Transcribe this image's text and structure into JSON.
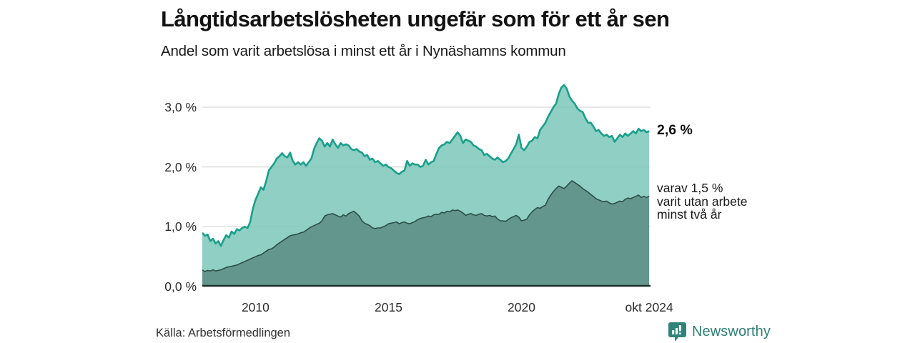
{
  "chart_data": {
    "type": "area",
    "title": "Långtidsarbetslösheten ungefär som för ett år sen",
    "subtitle": "Andel som varit arbetslösa i minst ett år i Nynäshamns kommun",
    "x_range": [
      2008.0,
      2024.85
    ],
    "y_range": [
      0,
      3.49
    ],
    "grid": "horizontal",
    "legend_position": "none",
    "x_ticks": [
      {
        "label": "2010",
        "year": 2010
      },
      {
        "label": "2015",
        "year": 2015
      },
      {
        "label": "2020",
        "year": 2020
      },
      {
        "label": "okt 2024",
        "year": 2024.8
      }
    ],
    "y_ticks": [
      {
        "label": "0,0 %",
        "value": 0
      },
      {
        "label": "1,0 %",
        "value": 1
      },
      {
        "label": "2,0 %",
        "value": 2
      },
      {
        "label": "3,0 %",
        "value": 3
      }
    ],
    "annotations": {
      "total_label": "2,6 %",
      "secondary_label": "varav 1,5 %\nvarit utan arbete\nminst två år"
    },
    "colors": {
      "total_line": "#18a08a",
      "total_fill": "#7cc7ba",
      "secondary_line": "#2b4f49",
      "secondary_fill": "#5c8c83",
      "gridline": "#d6d6d6",
      "axis_line": "#1d2e2a",
      "brand_teal": "#2e7f75"
    },
    "series": [
      {
        "name": "Andel arbetslösa minst ett år",
        "start": 2008.0,
        "step": 0.1,
        "values": [
          0.9,
          0.85,
          0.87,
          0.76,
          0.8,
          0.72,
          0.76,
          0.68,
          0.78,
          0.86,
          0.82,
          0.92,
          0.88,
          0.96,
          0.94,
          0.98,
          1.0,
          0.98,
          1.08,
          1.3,
          1.45,
          1.55,
          1.66,
          1.62,
          1.76,
          1.94,
          2.0,
          2.06,
          2.14,
          2.18,
          2.23,
          2.18,
          2.16,
          2.24,
          2.1,
          2.04,
          2.08,
          2.04,
          2.08,
          2.02,
          2.08,
          2.14,
          2.3,
          2.4,
          2.48,
          2.44,
          2.34,
          2.4,
          2.34,
          2.46,
          2.38,
          2.32,
          2.4,
          2.36,
          2.38,
          2.36,
          2.3,
          2.28,
          2.3,
          2.26,
          2.24,
          2.18,
          2.2,
          2.12,
          2.14,
          2.08,
          2.1,
          2.06,
          2.02,
          2.04,
          2.0,
          1.98,
          1.94,
          1.9,
          1.88,
          1.92,
          1.94,
          2.1,
          2.02,
          2.06,
          2.04,
          2.04,
          2.0,
          2.02,
          2.12,
          2.04,
          2.08,
          2.1,
          2.22,
          2.32,
          2.36,
          2.38,
          2.42,
          2.4,
          2.46,
          2.52,
          2.58,
          2.52,
          2.4,
          2.46,
          2.44,
          2.42,
          2.36,
          2.34,
          2.3,
          2.28,
          2.2,
          2.22,
          2.18,
          2.14,
          2.12,
          2.16,
          2.12,
          2.08,
          2.1,
          2.14,
          2.22,
          2.3,
          2.38,
          2.54,
          2.32,
          2.28,
          2.34,
          2.42,
          2.44,
          2.5,
          2.48,
          2.62,
          2.68,
          2.74,
          2.84,
          2.92,
          3.0,
          3.06,
          3.22,
          3.33,
          3.37,
          3.31,
          3.18,
          3.11,
          3.06,
          2.98,
          2.94,
          2.92,
          2.82,
          2.74,
          2.74,
          2.68,
          2.6,
          2.62,
          2.56,
          2.52,
          2.54,
          2.5,
          2.52,
          2.42,
          2.48,
          2.54,
          2.5,
          2.56,
          2.52,
          2.56,
          2.6,
          2.56,
          2.64,
          2.6,
          2.62,
          2.58,
          2.6
        ]
      },
      {
        "name": "Andel arbetslösa minst två år",
        "start": 2008.0,
        "step": 0.1,
        "values": [
          0.28,
          0.25,
          0.27,
          0.26,
          0.28,
          0.26,
          0.27,
          0.28,
          0.3,
          0.32,
          0.33,
          0.34,
          0.35,
          0.36,
          0.38,
          0.4,
          0.42,
          0.44,
          0.46,
          0.48,
          0.5,
          0.52,
          0.53,
          0.56,
          0.59,
          0.62,
          0.63,
          0.66,
          0.7,
          0.73,
          0.76,
          0.79,
          0.82,
          0.85,
          0.86,
          0.87,
          0.88,
          0.9,
          0.91,
          0.94,
          0.97,
          1.0,
          1.02,
          1.04,
          1.06,
          1.1,
          1.18,
          1.2,
          1.21,
          1.22,
          1.2,
          1.18,
          1.16,
          1.2,
          1.18,
          1.22,
          1.24,
          1.26,
          1.22,
          1.18,
          1.1,
          1.06,
          1.04,
          1.02,
          0.98,
          0.97,
          0.98,
          0.98,
          1.0,
          1.02,
          1.05,
          1.06,
          1.07,
          1.08,
          1.05,
          1.07,
          1.08,
          1.06,
          1.05,
          1.07,
          1.09,
          1.12,
          1.14,
          1.15,
          1.16,
          1.18,
          1.17,
          1.2,
          1.21,
          1.21,
          1.24,
          1.23,
          1.26,
          1.25,
          1.28,
          1.27,
          1.28,
          1.26,
          1.23,
          1.19,
          1.21,
          1.22,
          1.2,
          1.19,
          1.21,
          1.22,
          1.19,
          1.18,
          1.19,
          1.17,
          1.18,
          1.13,
          1.1,
          1.1,
          1.09,
          1.12,
          1.15,
          1.17,
          1.19,
          1.16,
          1.1,
          1.11,
          1.13,
          1.2,
          1.25,
          1.29,
          1.32,
          1.31,
          1.34,
          1.36,
          1.46,
          1.53,
          1.59,
          1.64,
          1.68,
          1.66,
          1.64,
          1.68,
          1.73,
          1.77,
          1.74,
          1.71,
          1.68,
          1.64,
          1.61,
          1.58,
          1.54,
          1.51,
          1.47,
          1.45,
          1.43,
          1.42,
          1.43,
          1.4,
          1.38,
          1.39,
          1.41,
          1.43,
          1.42,
          1.46,
          1.48,
          1.47,
          1.49,
          1.51,
          1.53,
          1.49,
          1.51,
          1.49,
          1.51
        ]
      }
    ]
  },
  "footer": {
    "source": "Källa: Arbetsförmedlingen",
    "brand": "Newsworthy"
  }
}
